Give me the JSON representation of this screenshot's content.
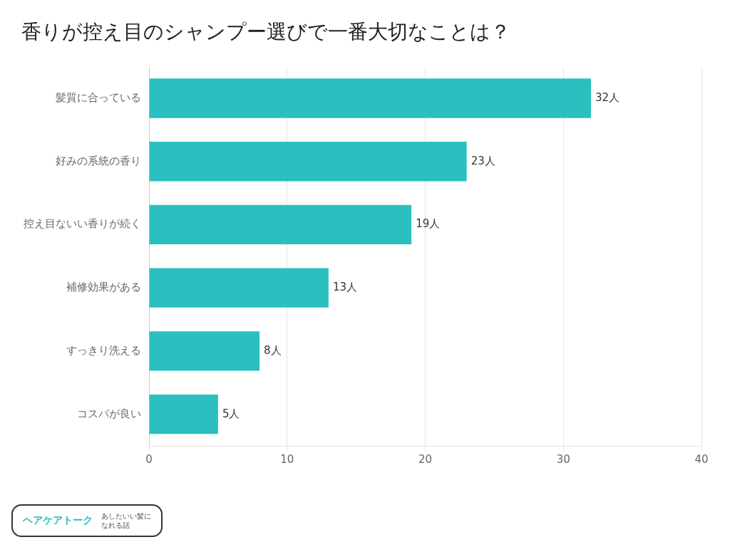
{
  "chart_data": {
    "type": "bar",
    "orientation": "horizontal",
    "title": "香りが控え目のシャンプー選びで一番大切なことは？",
    "categories": [
      "コスパが良い",
      "すっきり洗える",
      "補修効果がある",
      "控え目ないい香りが続く",
      "好みの系統の香り",
      "髪質に合っている"
    ],
    "values": [
      5,
      8,
      13,
      19,
      23,
      32
    ],
    "value_labels": [
      "5人",
      "8人",
      "13人",
      "19人",
      "23人",
      "32人"
    ],
    "data_labels": true,
    "color": "#2BBFBF",
    "xlim": [
      0,
      40
    ],
    "xticks": [
      0,
      10,
      20,
      30,
      40
    ],
    "grid": true,
    "annotations": [
      "ヘアケアトーク",
      "あしたいい髪に",
      "なれる話"
    ]
  }
}
